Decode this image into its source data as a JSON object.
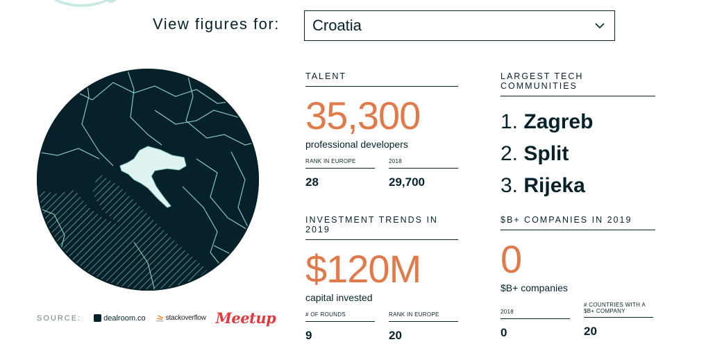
{
  "filter": {
    "label": "View figures for:",
    "selected": "Croatia"
  },
  "source": {
    "label": "SOURCE:",
    "logos": [
      "dealroom.co",
      "stackoverflow",
      "Meetup"
    ]
  },
  "talent": {
    "heading": "TALENT",
    "value": "35,300",
    "caption": "professional developers",
    "stats": [
      {
        "label": "RANK IN EUROPE",
        "value": "28"
      },
      {
        "label": "2018",
        "value": "29,700"
      }
    ]
  },
  "communities": {
    "heading": "LARGEST TECH COMMUNITIES",
    "items": [
      {
        "rank": "1.",
        "name": "Zagreb"
      },
      {
        "rank": "2.",
        "name": "Split"
      },
      {
        "rank": "3.",
        "name": "Rijeka"
      }
    ]
  },
  "investment": {
    "heading": "INVESTMENT TRENDS IN 2019",
    "value": "$120M",
    "caption": "capital invested",
    "stats": [
      {
        "label": "# OF ROUNDS",
        "value": "9"
      },
      {
        "label": "RANK IN EUROPE",
        "value": "20"
      }
    ]
  },
  "companies": {
    "heading": "$B+ COMPANIES IN 2019",
    "value": "0",
    "caption": "$B+ companies",
    "stats": [
      {
        "label": "2018",
        "value": "0"
      },
      {
        "label": "# COUNTRIES WITH A $B+ COMPANY",
        "value": "20"
      }
    ]
  },
  "colors": {
    "accent": "#e07a4a",
    "dark": "#062129",
    "highlight": "#dff3f0"
  }
}
